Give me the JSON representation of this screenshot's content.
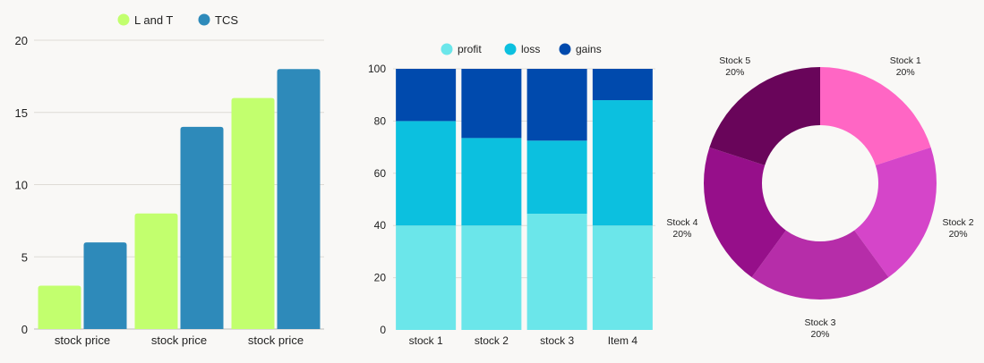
{
  "chart_data": [
    {
      "type": "bar",
      "categories": [
        "stock price",
        "stock price",
        "stock price"
      ],
      "series": [
        {
          "name": "L and T",
          "values": [
            3,
            8,
            16
          ]
        },
        {
          "name": "TCS",
          "values": [
            6,
            14,
            18
          ]
        }
      ],
      "ylim": [
        0,
        20
      ],
      "yticks": [
        0,
        5,
        10,
        15,
        20
      ],
      "grid": true,
      "legend": "top",
      "colors": [
        "#c2ff6e",
        "#2e8aba"
      ]
    },
    {
      "type": "bar",
      "stacked": true,
      "categories": [
        "stock 1",
        "stock 2",
        "stock 3",
        "Item 4"
      ],
      "series": [
        {
          "name": "profit",
          "values": [
            40,
            40,
            44.5,
            40
          ]
        },
        {
          "name": "loss",
          "values": [
            40,
            33.5,
            28,
            48
          ]
        },
        {
          "name": "gains",
          "values": [
            20,
            26.5,
            27.5,
            12
          ]
        }
      ],
      "ylim": [
        0,
        100
      ],
      "yticks": [
        0,
        20,
        40,
        60,
        80,
        100
      ],
      "grid": true,
      "legend": "top",
      "colors": [
        "#6be6ea",
        "#0cc0df",
        "#004aad"
      ]
    },
    {
      "type": "pie",
      "donut": true,
      "labels": [
        "Stock 1",
        "Stock 2",
        "Stock 3",
        "Stock 4",
        "Stock 5"
      ],
      "values": [
        20,
        20,
        20,
        20,
        20
      ],
      "value_labels": [
        "20%",
        "20%",
        "20%",
        "20%",
        "20%"
      ],
      "colors": [
        "#ff66c4",
        "#d545c9",
        "#b62da9",
        "#960f8a",
        "#69055a"
      ]
    }
  ]
}
